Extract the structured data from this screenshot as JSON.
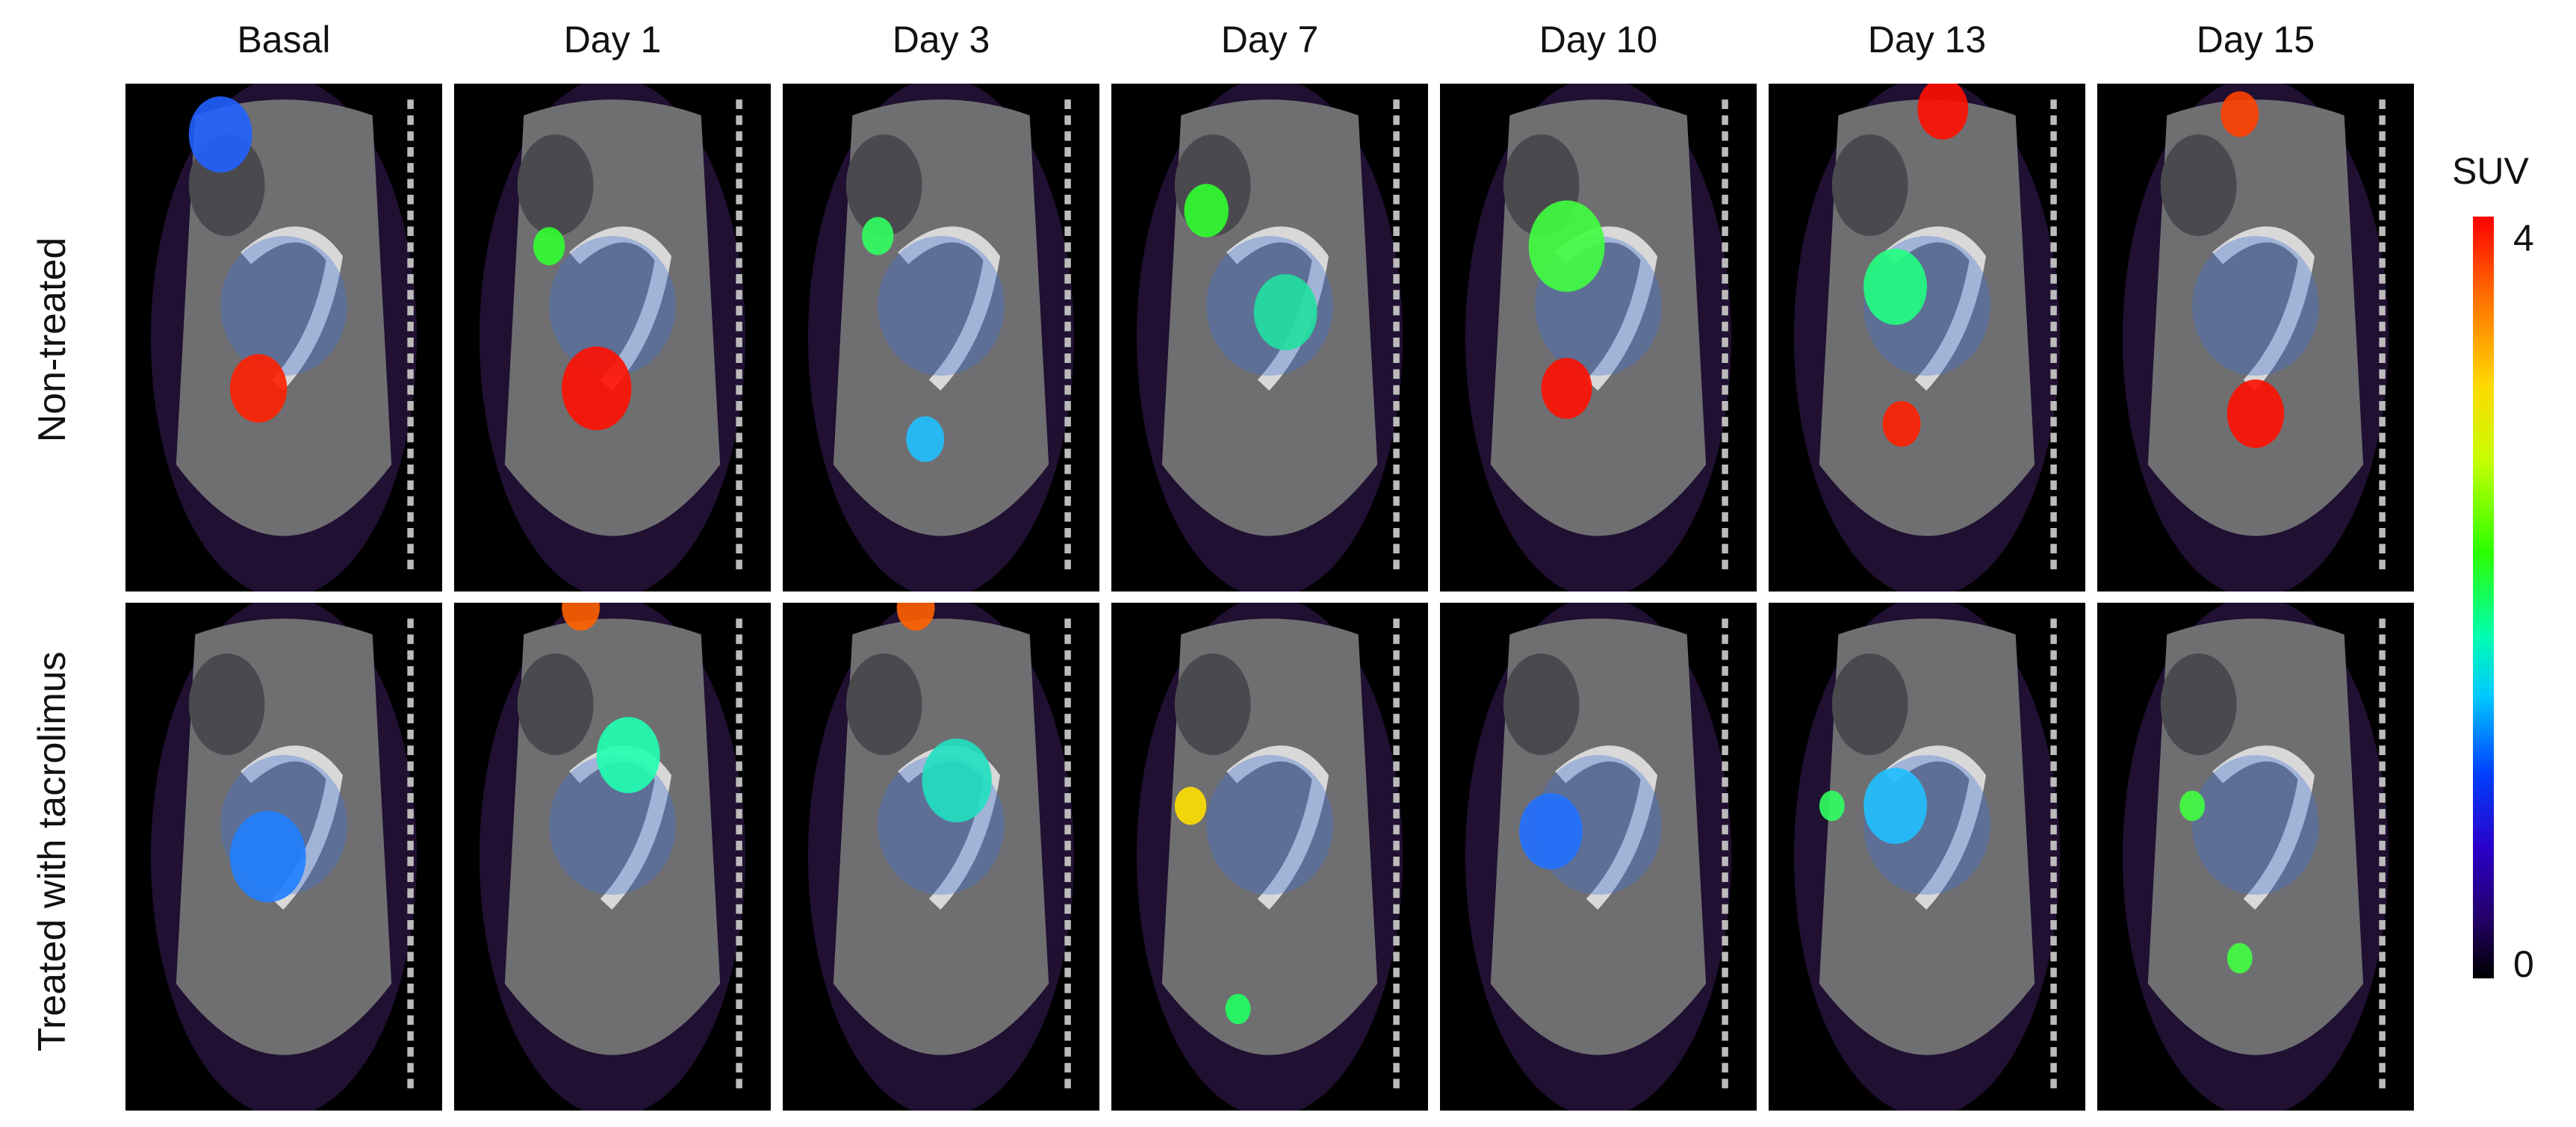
{
  "columns": [
    "Basal",
    "Day 1",
    "Day 3",
    "Day 7",
    "Day 10",
    "Day 13",
    "Day 15"
  ],
  "rows": [
    "Non-treated",
    "Treated with tacrolimus"
  ],
  "colorbar": {
    "title": "SUV",
    "max_label": "4",
    "min_label": "0",
    "colors": [
      "#ff0000",
      "#ffd800",
      "#2cff00",
      "#00c8ff",
      "#0040ff",
      "#24006a",
      "#000000"
    ]
  }
}
